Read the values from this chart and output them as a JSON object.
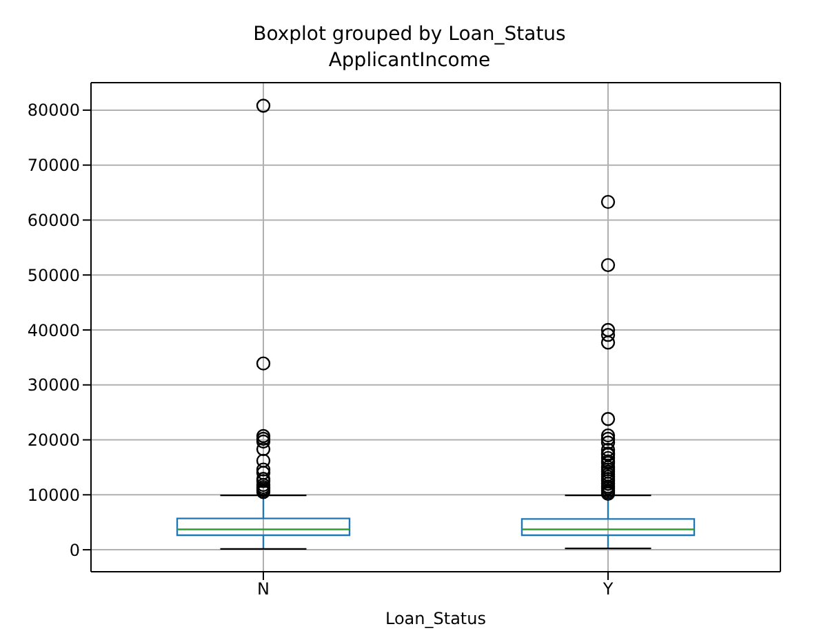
{
  "chart_data": {
    "type": "box",
    "title": "Boxplot grouped by Loan_Status",
    "subtitle": "ApplicantIncome",
    "xlabel": "Loan_Status",
    "categories": [
      "N",
      "Y"
    ],
    "ylim": [
      -4000,
      85000
    ],
    "yticks": [
      0,
      10000,
      20000,
      30000,
      40000,
      50000,
      60000,
      70000,
      80000
    ],
    "grid": true,
    "color": "#1f77b4",
    "boxes": [
      {
        "low": 150,
        "q1": 2650,
        "median": 3700,
        "q3": 5700,
        "high": 9900,
        "outliers": [
          80800,
          33900,
          20700,
          20200,
          19700,
          18300,
          16200,
          14600,
          14000,
          12900,
          12500,
          11800,
          11400,
          11100,
          10800,
          10500
        ]
      },
      {
        "low": 250,
        "q1": 2650,
        "median": 3700,
        "q3": 5600,
        "high": 9900,
        "outliers": [
          63300,
          51800,
          40000,
          39100,
          37700,
          23800,
          20800,
          20200,
          19500,
          18200,
          17500,
          17300,
          16700,
          16100,
          15800,
          15000,
          14600,
          14200,
          13700,
          13300,
          12900,
          12500,
          12000,
          11500,
          11200,
          10800,
          10500,
          10200
        ]
      }
    ]
  }
}
